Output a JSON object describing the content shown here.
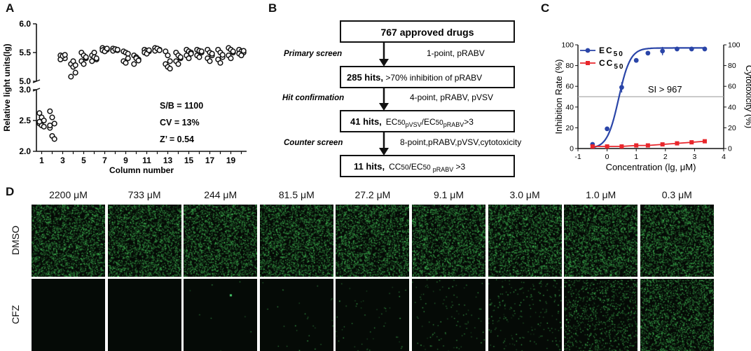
{
  "figure": {
    "panels": {
      "a": "A",
      "b": "B",
      "c": "C",
      "d": "D"
    }
  },
  "chart_data": [
    {
      "panel": "A",
      "type": "scatter",
      "ylabel": "Relative light units(lg)",
      "xlabel": "Column number",
      "x_ticks": [
        "1",
        "3",
        "5",
        "7",
        "9",
        "11",
        "13",
        "15",
        "17",
        "19"
      ],
      "y_ticks_lower": [
        "2.0",
        "2.5",
        "3.0"
      ],
      "y_ticks_upper": [
        "5.0",
        "5.5",
        "6.0"
      ],
      "ylim_lower": [
        2.0,
        3.0
      ],
      "ylim_upper": [
        5.0,
        6.0
      ],
      "xlim": [
        0.5,
        20.5
      ],
      "stats": [
        "S/B = 1100",
        "CV = 13%",
        "Z’ = 0.54"
      ],
      "columns": [
        {
          "x": 1,
          "values": [
            2.62,
            2.55,
            2.5,
            2.45,
            2.42,
            2.4,
            2.48
          ]
        },
        {
          "x": 2,
          "values": [
            2.65,
            2.55,
            2.45,
            2.38,
            2.25,
            2.2,
            2.42
          ]
        },
        {
          "x": 3,
          "values": [
            5.45,
            5.42,
            5.4,
            5.38,
            5.44,
            5.46
          ]
        },
        {
          "x": 4,
          "values": [
            5.3,
            5.25,
            5.15,
            5.08,
            5.35,
            5.28
          ]
        },
        {
          "x": 5,
          "values": [
            5.5,
            5.45,
            5.4,
            5.35,
            5.3,
            5.42
          ]
        },
        {
          "x": 6,
          "values": [
            5.45,
            5.42,
            5.38,
            5.35,
            5.5,
            5.4
          ]
        },
        {
          "x": 7,
          "values": [
            5.58,
            5.56,
            5.55,
            5.54,
            5.52,
            5.57
          ]
        },
        {
          "x": 8,
          "values": [
            5.57,
            5.55,
            5.54,
            5.53,
            5.56,
            5.55
          ]
        },
        {
          "x": 9,
          "values": [
            5.52,
            5.5,
            5.4,
            5.35,
            5.32,
            5.48
          ]
        },
        {
          "x": 10,
          "values": [
            5.45,
            5.42,
            5.38,
            5.3,
            5.4,
            5.36
          ]
        },
        {
          "x": 11,
          "values": [
            5.55,
            5.53,
            5.52,
            5.5,
            5.48,
            5.54
          ]
        },
        {
          "x": 12,
          "values": [
            5.58,
            5.56,
            5.55,
            5.53,
            5.57,
            5.54
          ]
        },
        {
          "x": 13,
          "values": [
            5.52,
            5.45,
            5.35,
            5.3,
            5.25,
            5.22
          ]
        },
        {
          "x": 14,
          "values": [
            5.5,
            5.45,
            5.4,
            5.35,
            5.3,
            5.42
          ]
        },
        {
          "x": 15,
          "values": [
            5.55,
            5.52,
            5.5,
            5.45,
            5.4,
            5.48
          ]
        },
        {
          "x": 16,
          "values": [
            5.55,
            5.53,
            5.5,
            5.45,
            5.42,
            5.52
          ]
        },
        {
          "x": 17,
          "values": [
            5.55,
            5.5,
            5.45,
            5.4,
            5.35,
            5.48
          ]
        },
        {
          "x": 18,
          "values": [
            5.55,
            5.5,
            5.42,
            5.38,
            5.32,
            5.46
          ]
        },
        {
          "x": 19,
          "values": [
            5.58,
            5.55,
            5.5,
            5.45,
            5.4,
            5.52
          ]
        },
        {
          "x": 20,
          "values": [
            5.55,
            5.52,
            5.5,
            5.48,
            5.45,
            5.53
          ]
        }
      ]
    },
    {
      "panel": "C",
      "type": "line",
      "xlabel": "Concentration (lg, μM)",
      "ylabel": "Inhibition Rate (%)",
      "ylabel_right": "Cytotoxicity (%)",
      "xlim": [
        -1,
        4
      ],
      "ylim": [
        0,
        100
      ],
      "x_ticks": [
        -1,
        0,
        1,
        2,
        3,
        4
      ],
      "y_ticks": [
        0,
        20,
        40,
        60,
        80,
        100
      ],
      "y_ticks_right": [
        0,
        20,
        40,
        60,
        80,
        100
      ],
      "annotation": "SI > 967",
      "reference_line_y": 50,
      "legend": [
        "EC",
        "CC"
      ],
      "legend_sub": "50",
      "series": [
        {
          "name": "EC50",
          "color": "#2a45a8",
          "x": [
            -0.5,
            0.0,
            0.5,
            1.0,
            1.4,
            1.9,
            2.4,
            2.9,
            3.35
          ],
          "y": [
            4,
            19,
            59,
            85,
            92,
            94,
            96,
            96,
            96
          ],
          "err": [
            1,
            2,
            5,
            2,
            2,
            4,
            1,
            1,
            1
          ]
        },
        {
          "name": "CC50",
          "color": "#e8262b",
          "x": [
            -0.5,
            0.0,
            0.5,
            1.0,
            1.4,
            1.9,
            2.4,
            2.9,
            3.35
          ],
          "y": [
            2,
            2,
            2,
            3,
            3,
            4,
            5,
            6,
            7
          ],
          "err": [
            0.5,
            0.5,
            0.5,
            0.5,
            0.5,
            0.5,
            0.5,
            0.5,
            1
          ]
        }
      ]
    }
  ],
  "flowchart": {
    "boxes": [
      {
        "bold": "767 approved drugs",
        "rest": ""
      },
      {
        "bold": "285 hits,",
        "rest": " >70% inhibition of pRABV"
      },
      {
        "bold": "41 hits,",
        "rest": ""
      },
      {
        "bold": "11 hits,",
        "rest": ""
      }
    ],
    "box3_formula": {
      "a": "EC",
      "b": "50",
      "c": "pVSV",
      "d": "/EC",
      "e": "50",
      "f": "pRABV",
      "g": ">3"
    },
    "box4_formula": {
      "a": "CC",
      "b": "50",
      "c": "/EC",
      "d": "50",
      "e": "pRABV",
      "f": " >3"
    },
    "steps": [
      {
        "label": "Primary screen",
        "desc": "1-point, pRABV"
      },
      {
        "label": "Hit confirmation",
        "desc": "4-point, pRABV, pVSV"
      },
      {
        "label": "Counter screen",
        "desc": "8-point,pRABV,pVSV,cytotoxicity"
      }
    ]
  },
  "panel_d": {
    "concentrations": [
      "2200 μM",
      "733 μM",
      "244 μM",
      "81.5 μM",
      "27.2 μM",
      "9.1 μM",
      "3.0 μM",
      "1.0 μM",
      "0.3 μM"
    ],
    "rows": [
      "DMSO",
      "CFZ"
    ],
    "dmso_density": [
      0.9,
      0.9,
      0.9,
      0.9,
      0.9,
      0.9,
      0.9,
      0.9,
      0.9
    ],
    "cfz_density": [
      0.0,
      0.0,
      0.003,
      0.01,
      0.02,
      0.04,
      0.08,
      0.35,
      0.75
    ],
    "colors": {
      "fluorescence": "#46c96a",
      "background": "#050a06"
    }
  }
}
